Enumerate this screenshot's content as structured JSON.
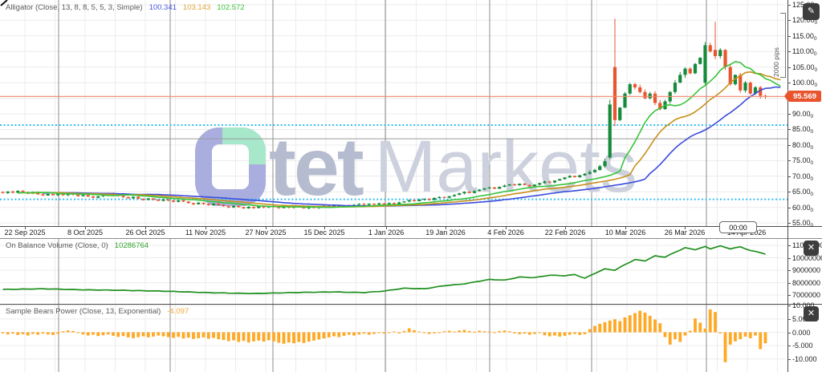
{
  "colors": {
    "candle_up": "#178a3c",
    "candle_down": "#e8562f",
    "alligator_jaw": "#3a4bdc",
    "alligator_teeth": "#c8901c",
    "alligator_lips": "#38c43a",
    "value_jaw": "#4a5be0",
    "value_teeth": "#dfa535",
    "value_lips": "#3cc13c",
    "obv_line": "#1f8f1f",
    "obv_value": "#2da32d",
    "bears_bar": "#ffa824",
    "bears_value": "#f3a93c",
    "dotted_level": "#35bdf0",
    "current_price_line": "#f2876a",
    "price_tag_bg": "#e8542e",
    "grid_light": "#ececec",
    "grid_month": "#8c8c8c",
    "gray_level_line": "#9a9a9a",
    "watermark_ring": "#a9aede",
    "watermark_accent": "#a7e8ca"
  },
  "main": {
    "indicator": {
      "label": "Alligator (Close, 13, 8, 8, 5, 5, 3, Simple)",
      "jaw_value": "100.341",
      "teeth_value": "103.143",
      "lips_value": "102.572"
    },
    "price_axis_labels": [
      "125.00",
      "120.00",
      "115.00",
      "110.00",
      "105.00",
      "100.00",
      "90.00",
      "85.00",
      "80.00",
      "75.00",
      "70.00",
      "65.00",
      "60.00",
      "55.00"
    ],
    "price_axis_sub_digit": "0",
    "price_tag": "95.569",
    "pips_label": "2000 pips",
    "time_tag": "00:00"
  },
  "watermark": {
    "word_rest": "tet",
    "word2": "Markets"
  },
  "date_axis": {
    "labels": [
      "22 Sep 2025",
      "8 Oct 2025",
      "26 Oct 2025",
      "11 Nov 2025",
      "27 Nov 2025",
      "15 Dec 2025",
      "1 Jan 2026",
      "19 Jan 2026",
      "4 Feb 2026",
      "22 Feb 2026",
      "10 Mar 2026",
      "26 Mar 2026",
      "14 Apr 2026"
    ]
  },
  "obv": {
    "label": "On Balance Volume (Close, 0)",
    "value": "10286764",
    "axis_labels": [
      "11000000",
      "10000000",
      "9000000",
      "8000000",
      "7000000"
    ],
    "close_button": "✕"
  },
  "bears": {
    "label": "Sample Bears Power (Close, 13, Exponential)",
    "value": "-4.097",
    "axis_labels": [
      "10.000",
      "5.000",
      "0.000",
      "-5.000",
      "-10.000"
    ],
    "close_button": "✕"
  },
  "edit_button": "✎",
  "chart_data": [
    {
      "type": "candlestick",
      "title": "Alligator (Close, 13, 8, 8, 5, 5, 3, Simple)",
      "x_tick_labels": [
        "22 Sep 2025",
        "8 Oct 2025",
        "26 Oct 2025",
        "11 Nov 2025",
        "27 Nov 2025",
        "15 Dec 2025",
        "1 Jan 2026",
        "19 Jan 2026",
        "4 Feb 2026",
        "22 Feb 2026",
        "10 Mar 2026",
        "26 Mar 2026",
        "14 Apr 2026"
      ],
      "y_axis_ticks": [
        125,
        120,
        115,
        110,
        105,
        100,
        95,
        90,
        85,
        80,
        75,
        70,
        65,
        60,
        55
      ],
      "y_range_visible": [
        46,
        136
      ],
      "closes": [
        64.6,
        65.1,
        64.7,
        65.3,
        64.9,
        64.4,
        64.8,
        64.2,
        63.8,
        64.3,
        63.9,
        64.4,
        63.9,
        64.5,
        64.1,
        63.6,
        64.0,
        63.5,
        63.1,
        63.6,
        64.2,
        64.6,
        64.1,
        63.7,
        63.3,
        62.9,
        63.4,
        62.8,
        62.4,
        62.9,
        62.5,
        62.1,
        62.6,
        62.2,
        61.8,
        62.3,
        61.9,
        61.4,
        61.0,
        61.5,
        61.1,
        60.7,
        61.2,
        60.8,
        60.4,
        60.0,
        60.5,
        60.1,
        59.7,
        60.2,
        59.8,
        60.3,
        60.0,
        60.4,
        60.1,
        59.8,
        60.2,
        59.9,
        60.3,
        60.0,
        59.7,
        60.1,
        59.8,
        60.2,
        60.5,
        60.2,
        60.6,
        60.3,
        60.7,
        60.4,
        60.8,
        61.1,
        60.8,
        61.2,
        60.9,
        61.3,
        61.0,
        61.4,
        61.1,
        61.6,
        61.9,
        62.3,
        62.0,
        62.5,
        62.8,
        62.4,
        63.0,
        63.3,
        63.1,
        63.6,
        64.0,
        64.5,
        65.0,
        64.6,
        65.2,
        65.7,
        66.1,
        66.4,
        66.0,
        66.6,
        67.0,
        67.4,
        67.1,
        67.6,
        67.2,
        66.8,
        67.3,
        67.8,
        68.3,
        68.0,
        68.6,
        69.1,
        69.6,
        70.1,
        69.7,
        70.3,
        70.8,
        71.3,
        72.0,
        73.2,
        74.8,
        93.0,
        88.0,
        92.0,
        96.5,
        99.5,
        98.5,
        97.0,
        95.0,
        96.5,
        93.5,
        91.5,
        94.0,
        97.0,
        100.0,
        102.5,
        104.5,
        103.0,
        106.0,
        108.0,
        112.0,
        110.0,
        108.5,
        110.5,
        105.0,
        99.5,
        102.5,
        97.5,
        100.0,
        96.5,
        98.5,
        95.8,
        95.569
      ],
      "special_candles": {
        "121": {
          "o": 76.0,
          "h": 94.5,
          "l": 75.5,
          "c": 93.0
        },
        "122": {
          "o": 105.0,
          "h": 120.5,
          "l": 86.0,
          "c": 88.0
        },
        "140": {
          "o": 100.0,
          "h": 113.0,
          "l": 99.0,
          "c": 112.0
        },
        "142": {
          "o": 110.5,
          "h": 119.5,
          "l": 107.5,
          "c": 108.5
        }
      },
      "overlays": {
        "alligator": {
          "jaw": {
            "period": 13,
            "shift": 8,
            "displayed_value": 100.341
          },
          "teeth": {
            "period": 8,
            "shift": 5,
            "displayed_value": 103.143
          },
          "lips": {
            "period": 5,
            "shift": 3,
            "displayed_value": 102.572
          }
        }
      },
      "levels": {
        "dotted_lines": [
          86.4,
          62.6
        ],
        "gray_line": 82.0,
        "current_price": 95.569
      },
      "annotations": {
        "pips_bracket": {
          "label": "2000 pips",
          "from_price": 122.5,
          "to_price": 101.6
        },
        "time_marker": "00:00"
      }
    },
    {
      "type": "line",
      "title": "On Balance Volume (Close, 0)",
      "last_value": 10286764,
      "y_axis_ticks": [
        11000000,
        10000000,
        9000000,
        8000000,
        7000000
      ],
      "points": [
        [
          0,
          7450000
        ],
        [
          8,
          7500000
        ],
        [
          16,
          7420000
        ],
        [
          24,
          7380000
        ],
        [
          33,
          7300000
        ],
        [
          42,
          7180000
        ],
        [
          50,
          7120000
        ],
        [
          58,
          7200000
        ],
        [
          66,
          7250000
        ],
        [
          72,
          7200000
        ],
        [
          76,
          7320000
        ],
        [
          80,
          7550000
        ],
        [
          84,
          7500000
        ],
        [
          88,
          7750000
        ],
        [
          92,
          7900000
        ],
        [
          95,
          8120000
        ],
        [
          97,
          8250000
        ],
        [
          100,
          8200000
        ],
        [
          103,
          8450000
        ],
        [
          106,
          8400000
        ],
        [
          109,
          8600000
        ],
        [
          112,
          8550000
        ],
        [
          114,
          8650000
        ],
        [
          116,
          8350000
        ],
        [
          118,
          8750000
        ],
        [
          120,
          9100000
        ],
        [
          122,
          9000000
        ],
        [
          124,
          9450000
        ],
        [
          126,
          9850000
        ],
        [
          128,
          9750000
        ],
        [
          130,
          10150000
        ],
        [
          132,
          10050000
        ],
        [
          134,
          10450000
        ],
        [
          136,
          10800000
        ],
        [
          138,
          10650000
        ],
        [
          140,
          10900000
        ],
        [
          141,
          10720000
        ],
        [
          143,
          10950000
        ],
        [
          145,
          10720000
        ],
        [
          147,
          10880000
        ],
        [
          149,
          10580000
        ],
        [
          151,
          10420000
        ],
        [
          152,
          10286764
        ]
      ]
    },
    {
      "type": "bar",
      "title": "Sample Bears Power (Close, 13, Exponential)",
      "last_value": -4.097,
      "y_axis_ticks": [
        10,
        5,
        0,
        -5,
        -10
      ],
      "values": [
        -0.4,
        -0.8,
        -0.5,
        -1.0,
        -0.7,
        -1.2,
        -0.6,
        -0.9,
        -0.5,
        -0.8,
        -1.0,
        -0.6,
        0.4,
        0.7,
        0.5,
        -0.3,
        -0.8,
        -1.2,
        -0.9,
        -1.4,
        -1.1,
        -0.8,
        -1.3,
        -1.7,
        -1.4,
        -1.9,
        -2.2,
        -1.8,
        -1.5,
        -1.9,
        -1.6,
        -1.2,
        -1.5,
        -1.8,
        -2.1,
        -1.7,
        -2.3,
        -2.0,
        -2.5,
        -2.2,
        -1.9,
        -2.4,
        -2.1,
        -2.6,
        -2.9,
        -3.3,
        -3.0,
        -3.6,
        -3.2,
        -3.8,
        -3.4,
        -3.1,
        -3.5,
        -3.0,
        -3.4,
        -3.9,
        -4.3,
        -3.8,
        -4.1,
        -3.6,
        -4.0,
        -3.5,
        -3.1,
        -2.7,
        -2.3,
        -1.9,
        -1.5,
        -1.8,
        -1.3,
        -0.9,
        -1.2,
        -0.8,
        -0.5,
        -0.9,
        -0.6,
        -0.3,
        -0.5,
        -0.2,
        0.3,
        -0.4,
        0.5,
        1.5,
        0.8,
        0.3,
        -0.3,
        -0.6,
        -0.4,
        -0.2,
        0.4,
        0.6,
        0.3,
        0.7,
        0.9,
        0.5,
        0.2,
        0.6,
        0.4,
        0.3,
        -0.3,
        0.5,
        0.7,
        0.4,
        -0.4,
        -0.7,
        -0.5,
        -0.9,
        -0.6,
        -0.3,
        -1.1,
        -1.5,
        -1.2,
        -1.6,
        -1.3,
        -0.9,
        -0.6,
        -1.0,
        -0.7,
        1.2,
        2.4,
        3.2,
        3.8,
        4.4,
        4.9,
        4.2,
        5.6,
        6.4,
        7.2,
        8.1,
        7.4,
        6.2,
        4.8,
        3.4,
        -1.8,
        -4.6,
        -2.6,
        -3.6,
        -1.2,
        0.6,
        5.2,
        3.6,
        1.4,
        8.6,
        7.6,
        -0.4,
        -11.2,
        -4.6,
        -3.4,
        -2.6,
        -1.6,
        -2.2,
        -1.2,
        -6.3,
        -4.097
      ]
    }
  ]
}
